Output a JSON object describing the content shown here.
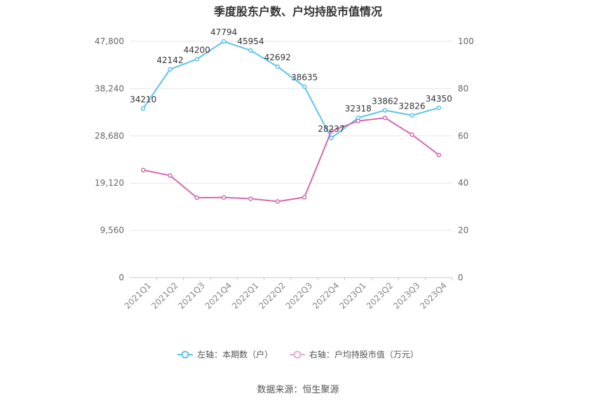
{
  "chart_data": {
    "type": "line",
    "title": "季度股东户数、户均持股市值情况",
    "categories": [
      "2021Q1",
      "2021Q2",
      "2021Q3",
      "2021Q4",
      "2022Q1",
      "2022Q2",
      "2022Q3",
      "2022Q4",
      "2023Q1",
      "2023Q2",
      "2023Q3",
      "2023Q4"
    ],
    "y_left": {
      "ticks": [
        "0",
        "9,560",
        "19,120",
        "28,680",
        "38,240",
        "47,800"
      ],
      "range": [
        0,
        47800
      ]
    },
    "y_right": {
      "ticks": [
        "0",
        "20",
        "40",
        "60",
        "80",
        "100"
      ],
      "range": [
        0,
        100
      ]
    },
    "series": [
      {
        "name": "左轴：本期数（户）",
        "axis": "left",
        "color": "#5bc2f0",
        "values": [
          34210,
          42142,
          44200,
          47794,
          45954,
          42692,
          38635,
          28237,
          32318,
          33862,
          32826,
          34350
        ],
        "labels": [
          "34210",
          "42142",
          "44200",
          "47794",
          "45954",
          "42692",
          "38635",
          "28237",
          "32318",
          "33862",
          "32826",
          "34350"
        ]
      },
      {
        "name": "右轴：户均持股市值（万元）",
        "axis": "right",
        "color": "#d46ab3",
        "values": [
          45.5,
          43.2,
          33.8,
          33.9,
          33.4,
          32.2,
          34.0,
          62.0,
          66.3,
          67.6,
          60.5,
          51.9
        ]
      }
    ],
    "grid": true,
    "legend_position": "bottom"
  },
  "source_text": "数据来源：恒生聚源"
}
